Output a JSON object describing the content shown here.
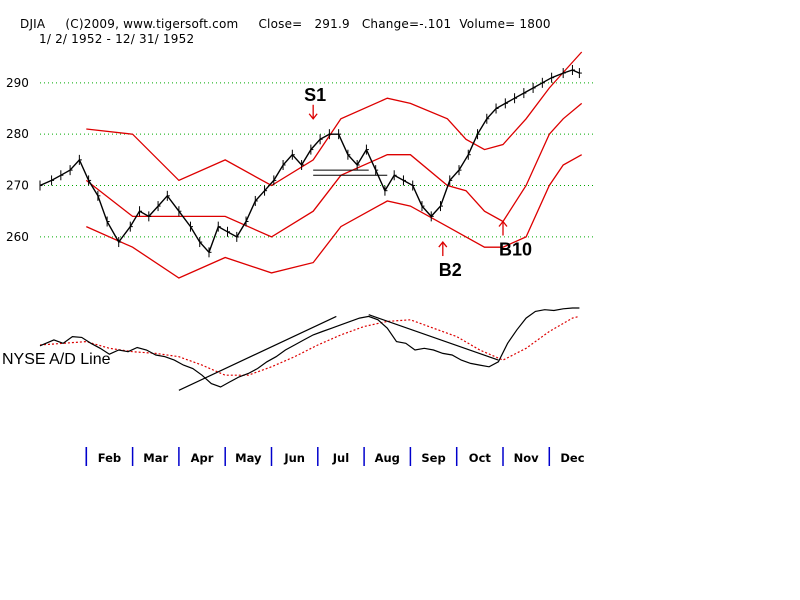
{
  "header": {
    "line1": "DJIA     (C)2009, www.tigersoft.com     Close=   291.9   Change=-.101  Volume= 1800",
    "line2": "1/ 2/ 1952 - 12/ 31/ 1952"
  },
  "colors": {
    "price": "#000000",
    "bands": "#dd0000",
    "grid": "#00aa00",
    "month_ticks": "#0000cc",
    "ad_line": "#000000",
    "ad_ma": "#dd0000"
  },
  "chart_data": [
    {
      "type": "line",
      "name": "DJIA",
      "ylim": [
        252,
        296
      ],
      "yticks": [
        "260",
        "270",
        "280",
        "290"
      ],
      "months": [
        "Feb",
        "Mar",
        "Apr",
        "May",
        "Jun",
        "Jul",
        "Aug",
        "Sep",
        "Oct",
        "Nov",
        "Dec"
      ],
      "x_month_positions": [
        0,
        1,
        2,
        3,
        4,
        5,
        6,
        7,
        8,
        9,
        10,
        11
      ],
      "price": {
        "x": [
          0.0,
          0.25,
          0.45,
          0.65,
          0.85,
          1.05,
          1.25,
          1.45,
          1.7,
          1.95,
          2.15,
          2.35,
          2.55,
          2.75,
          3.0,
          3.25,
          3.45,
          3.65,
          3.85,
          4.05,
          4.25,
          4.45,
          4.65,
          4.85,
          5.05,
          5.25,
          5.45,
          5.65,
          5.85,
          6.05,
          6.25,
          6.45,
          6.65,
          6.85,
          7.05,
          7.25,
          7.45,
          7.65,
          7.85,
          8.05,
          8.25,
          8.45,
          8.65,
          8.85,
          9.05,
          9.25,
          9.45,
          9.65,
          9.85,
          10.05,
          10.25,
          10.45,
          10.65,
          10.85,
          11.05,
          11.3,
          11.5,
          11.65
        ],
        "y": [
          270,
          271,
          272,
          273,
          275,
          271,
          268,
          263,
          259,
          262,
          265,
          264,
          266,
          268,
          265,
          262,
          259,
          257,
          262,
          261,
          260,
          263,
          267,
          269,
          271,
          274,
          276,
          274,
          277,
          279,
          280,
          280,
          276,
          274,
          277,
          273,
          269,
          272,
          271,
          270,
          266,
          264,
          266,
          271,
          273,
          276,
          280,
          283,
          285,
          286,
          287,
          288,
          289,
          290,
          291,
          291.9,
          292.5,
          291.9
        ]
      },
      "band_upper": {
        "x": [
          1.0,
          2.0,
          3.0,
          4.0,
          5.0,
          5.9,
          6.5,
          7.5,
          8.0,
          8.8,
          9.2,
          9.6,
          10.0,
          10.5,
          11.0,
          11.3,
          11.7
        ],
        "y": [
          281,
          280,
          271,
          275,
          270,
          275,
          283,
          287,
          286,
          283,
          279,
          277,
          278,
          283,
          289,
          292,
          296
        ]
      },
      "band_middle": {
        "x": [
          1.0,
          2.0,
          3.0,
          4.0,
          5.0,
          5.9,
          6.5,
          7.5,
          8.0,
          8.8,
          9.2,
          9.6,
          10.0,
          10.5,
          11.0,
          11.3,
          11.7
        ],
        "y": [
          271,
          264,
          264,
          264,
          260,
          265,
          272,
          276,
          276,
          270,
          269,
          265,
          263,
          270,
          280,
          283,
          286
        ]
      },
      "band_lower": {
        "x": [
          1.0,
          2.0,
          3.0,
          4.0,
          5.0,
          5.9,
          6.5,
          7.5,
          8.0,
          8.8,
          9.2,
          9.6,
          10.0,
          10.5,
          11.0,
          11.3,
          11.7
        ],
        "y": [
          262,
          258,
          252,
          256,
          253,
          255,
          262,
          267,
          266,
          262,
          260,
          258,
          258,
          260,
          270,
          274,
          276
        ]
      },
      "support_lines": [
        {
          "x": [
            5.9,
            7.1
          ],
          "y": [
            273,
            273
          ]
        },
        {
          "x": [
            5.9,
            7.5
          ],
          "y": [
            272,
            272
          ]
        }
      ],
      "annotations": [
        {
          "label": "S1",
          "x": 5.9,
          "y": 283,
          "arrow": "down"
        },
        {
          "label": "B2",
          "x": 8.7,
          "y": 259,
          "arrow": "up"
        },
        {
          "label": "B10",
          "x": 10.0,
          "y": 263,
          "arrow": "up"
        }
      ]
    },
    {
      "type": "line",
      "name": "NYSE A/D Line",
      "label": "NYSE A/D Line",
      "ad_line": {
        "x": [
          0.0,
          0.3,
          0.5,
          0.7,
          0.9,
          1.1,
          1.3,
          1.5,
          1.7,
          1.9,
          2.1,
          2.3,
          2.5,
          2.7,
          2.9,
          3.1,
          3.3,
          3.5,
          3.7,
          3.9,
          4.1,
          4.3,
          4.5,
          4.7,
          4.9,
          5.1,
          5.3,
          5.5,
          5.7,
          5.9,
          6.1,
          6.3,
          6.5,
          6.7,
          6.9,
          7.1,
          7.3,
          7.5,
          7.7,
          7.9,
          8.1,
          8.3,
          8.5,
          8.7,
          8.9,
          9.1,
          9.3,
          9.5,
          9.7,
          9.9,
          10.1,
          10.3,
          10.5,
          10.7,
          10.9,
          11.1,
          11.3,
          11.5,
          11.65
        ],
        "y": [
          0.55,
          0.62,
          0.58,
          0.66,
          0.65,
          0.58,
          0.52,
          0.45,
          0.5,
          0.48,
          0.53,
          0.5,
          0.44,
          0.42,
          0.38,
          0.32,
          0.28,
          0.2,
          0.1,
          0.06,
          0.12,
          0.18,
          0.22,
          0.28,
          0.36,
          0.42,
          0.5,
          0.56,
          0.62,
          0.68,
          0.72,
          0.76,
          0.8,
          0.84,
          0.88,
          0.9,
          0.86,
          0.76,
          0.6,
          0.58,
          0.5,
          0.52,
          0.5,
          0.46,
          0.44,
          0.38,
          0.34,
          0.32,
          0.3,
          0.36,
          0.58,
          0.74,
          0.88,
          0.96,
          0.98,
          0.97,
          0.99,
          1.0,
          1.0
        ]
      },
      "ad_ma": {
        "x": [
          0.0,
          0.5,
          1.0,
          1.5,
          2.0,
          2.5,
          3.0,
          3.5,
          4.0,
          4.5,
          5.0,
          5.5,
          6.0,
          6.5,
          7.0,
          7.5,
          8.0,
          8.5,
          9.0,
          9.5,
          10.0,
          10.5,
          11.0,
          11.5,
          11.65
        ],
        "y": [
          0.56,
          0.58,
          0.6,
          0.52,
          0.48,
          0.46,
          0.42,
          0.32,
          0.2,
          0.2,
          0.3,
          0.42,
          0.56,
          0.68,
          0.78,
          0.84,
          0.86,
          0.76,
          0.66,
          0.5,
          0.38,
          0.52,
          0.72,
          0.88,
          0.9
        ]
      },
      "trendlines": [
        {
          "x": [
            3.0,
            6.4
          ],
          "y": [
            0.02,
            0.9
          ]
        },
        {
          "x": [
            7.1,
            9.9
          ],
          "y": [
            0.92,
            0.38
          ]
        }
      ]
    }
  ]
}
